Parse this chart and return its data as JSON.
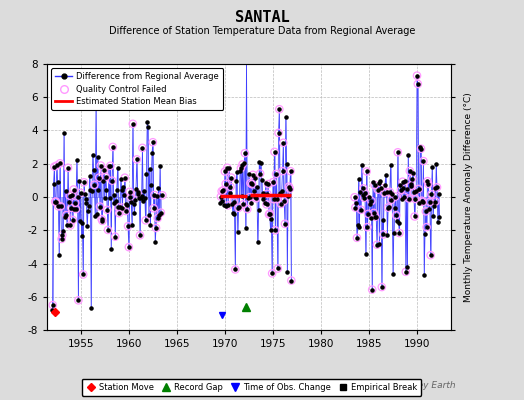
{
  "title": "SANTAL",
  "subtitle": "Difference of Station Temperature Data from Regional Average",
  "ylabel_right": "Monthly Temperature Anomaly Difference (°C)",
  "ylim": [
    -8,
    8
  ],
  "xlim": [
    1951.5,
    1993.5
  ],
  "xticks": [
    1955,
    1960,
    1965,
    1970,
    1975,
    1980,
    1985,
    1990
  ],
  "yticks": [
    -8,
    -6,
    -4,
    -2,
    0,
    2,
    4,
    6,
    8
  ],
  "bg_color": "#dcdcdc",
  "plot_bg_color": "#ffffff",
  "grid_color": "#bbbbbb",
  "watermark": "Berkeley Earth",
  "period1_x_start": 1952.0,
  "period1_x_end": 1963.5,
  "period2_x_start": 1969.5,
  "period2_x_end": 1976.9,
  "period3_x_start": 1983.5,
  "period3_x_end": 1992.3,
  "bias1_x_start": 1969.5,
  "bias1_x_end": 1972.3,
  "bias1_y": 0.05,
  "bias2_x_start": 1972.6,
  "bias2_x_end": 1976.9,
  "bias2_y": 0.1,
  "line_color": "#3333ff",
  "stem_color": "#8888ff",
  "dot_color": "black",
  "qc_color": "#ff99ff",
  "bias_color": "red"
}
